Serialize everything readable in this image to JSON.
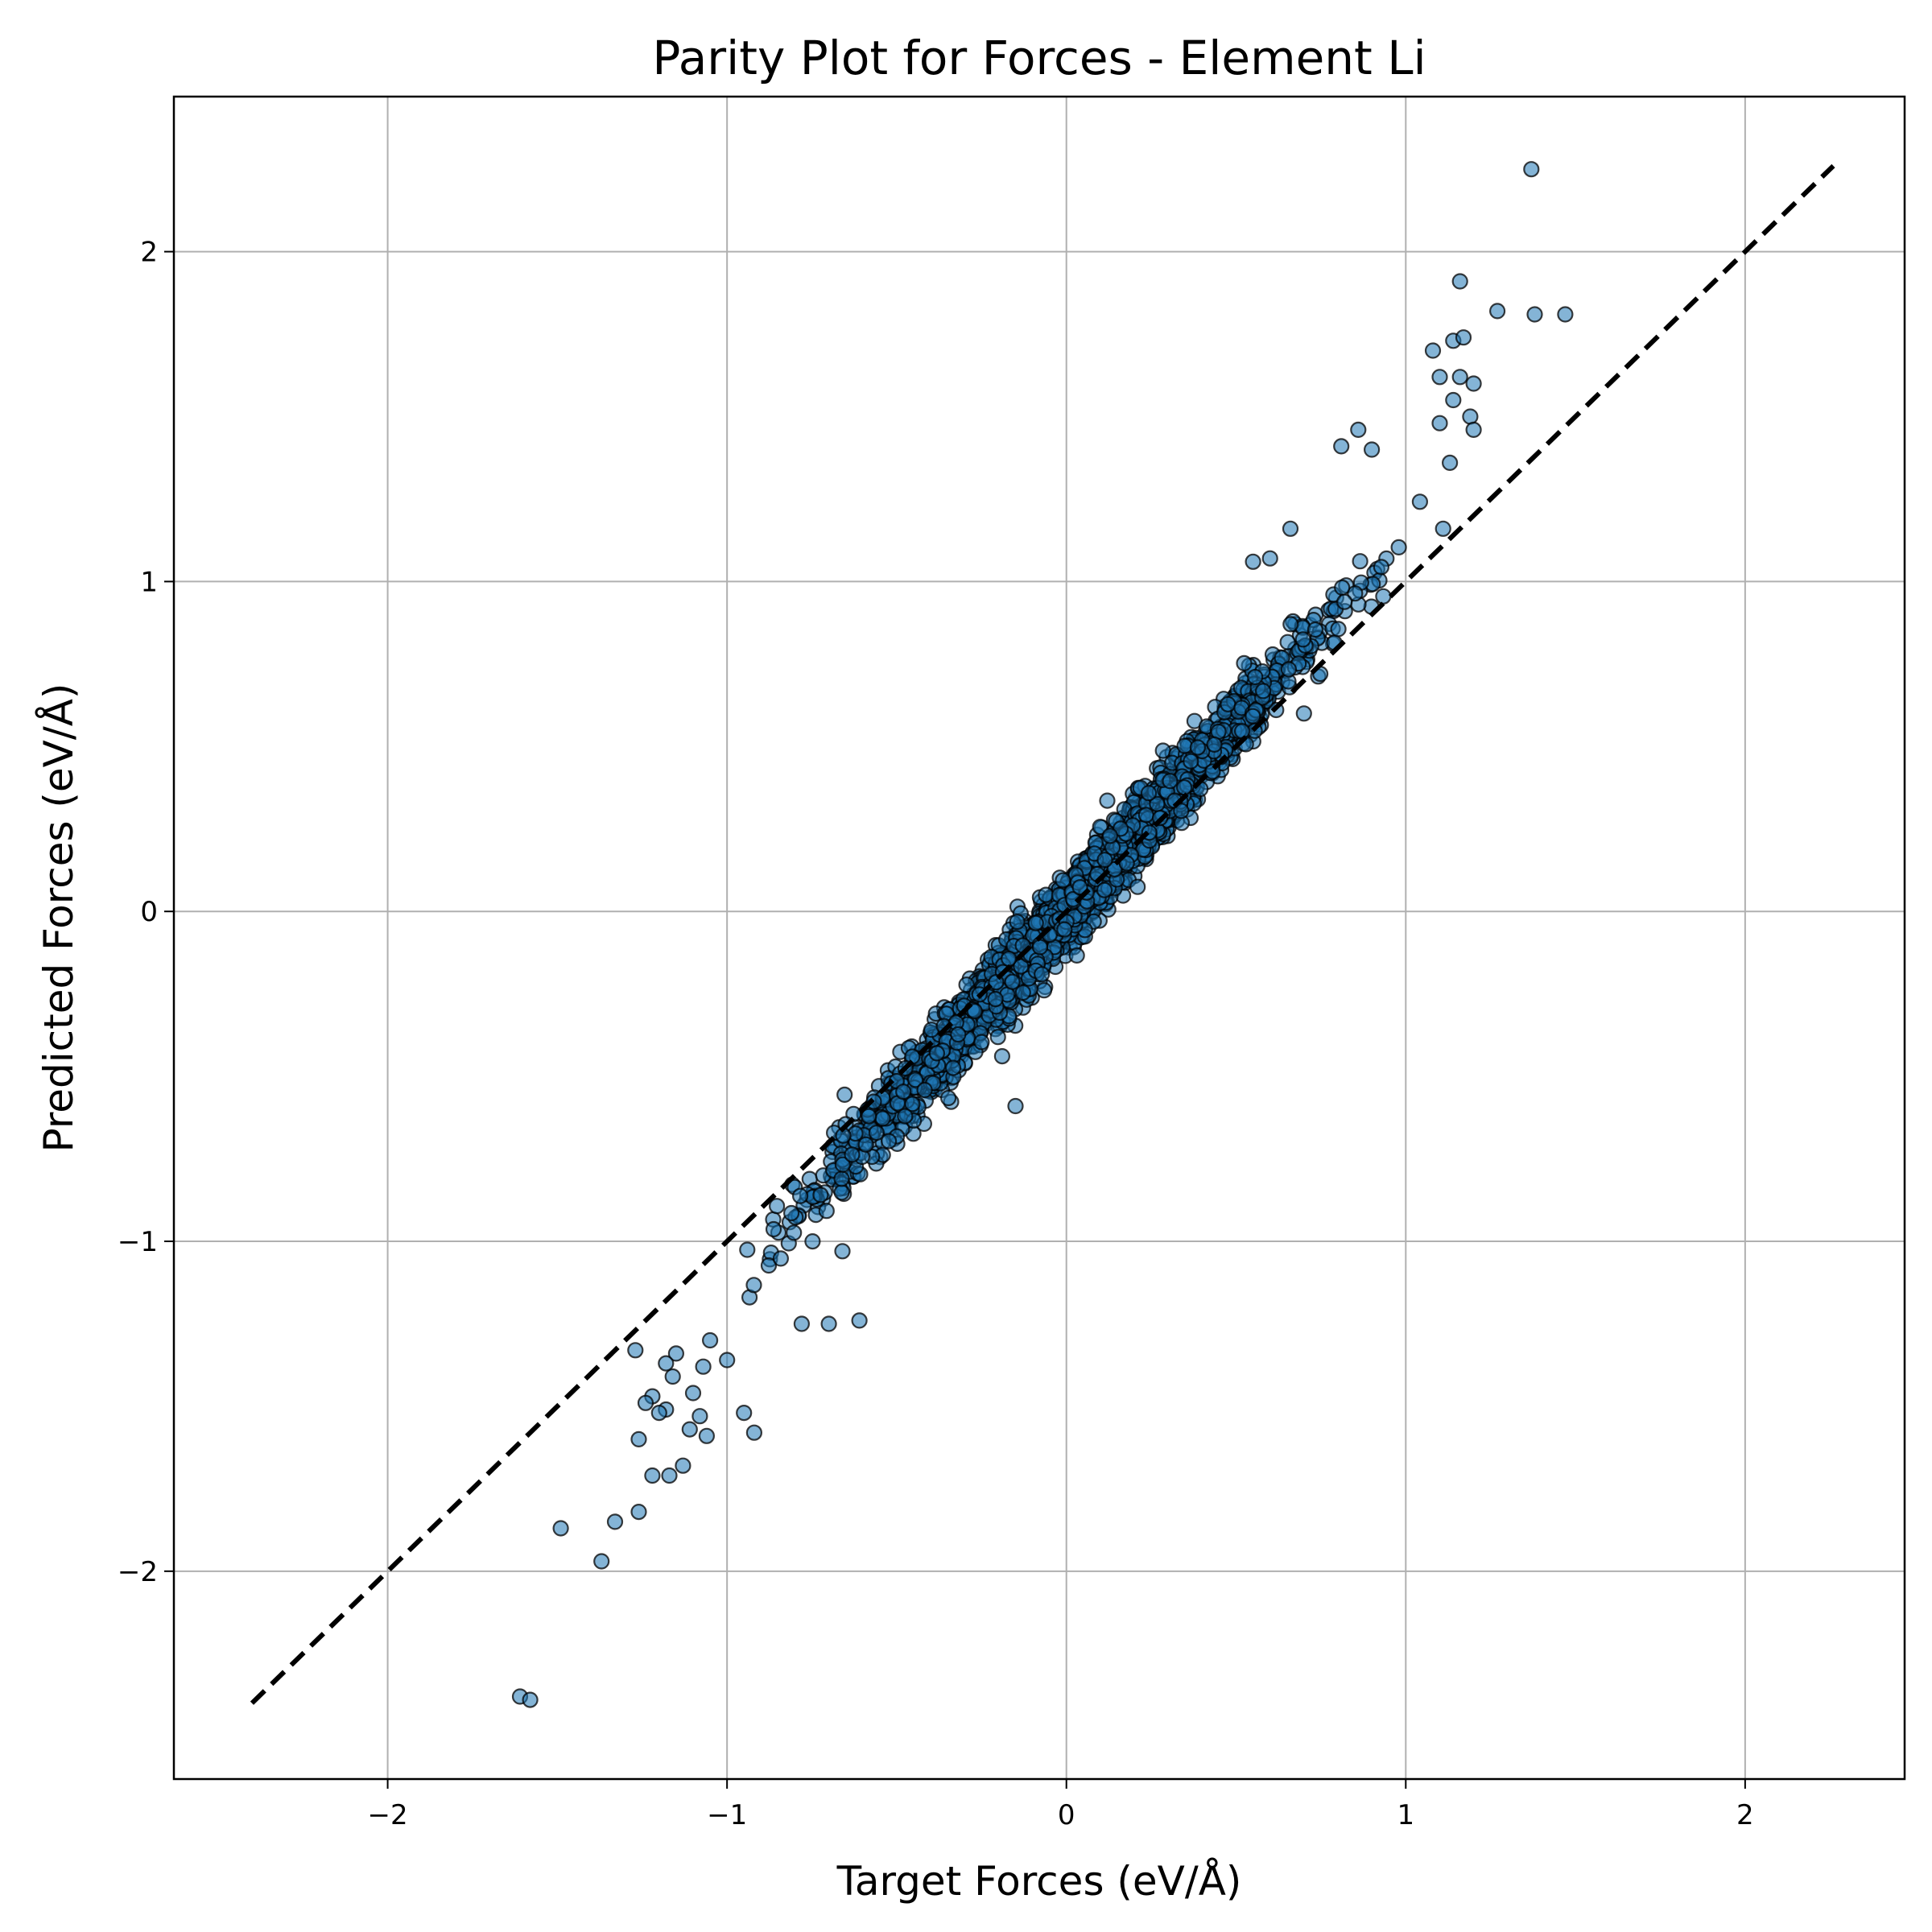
{
  "chart_data": {
    "type": "scatter",
    "title": "Parity Plot for Forces - Element Li",
    "xlabel": "Target Forces (eV/Å)",
    "ylabel": "Predicted Forces (eV/Å)",
    "xlim": [
      -2.63,
      2.47
    ],
    "ylim": [
      -2.63,
      2.47
    ],
    "xticks": [
      -2,
      -1,
      0,
      1,
      2
    ],
    "yticks": [
      -2,
      -1,
      0,
      1,
      2
    ],
    "xtick_labels": [
      "−2",
      "−1",
      "0",
      "1",
      "2"
    ],
    "ytick_labels": [
      "−2",
      "−1",
      "0",
      "1",
      "2"
    ],
    "grid": true,
    "legend": false,
    "reference_line": {
      "from": [
        -2.4,
        -2.4
      ],
      "to": [
        2.26,
        2.26
      ],
      "style": "dashed",
      "color": "#000000"
    },
    "marker_fill": "#1f77b4",
    "marker_fill_opacity": 0.55,
    "marker_edge": "#000000",
    "series": [
      {
        "description_main_cloud": "dense band of points roughly following y = 1.15x",
        "outliers": [
          [
            1.37,
            2.25
          ],
          [
            1.16,
            1.91
          ],
          [
            1.27,
            1.82
          ],
          [
            1.38,
            1.81
          ],
          [
            1.47,
            1.81
          ],
          [
            1.08,
            1.7
          ],
          [
            1.14,
            1.73
          ],
          [
            1.17,
            1.74
          ],
          [
            1.16,
            1.62
          ],
          [
            1.2,
            1.6
          ],
          [
            1.1,
            1.62
          ],
          [
            1.14,
            1.55
          ],
          [
            1.19,
            1.5
          ],
          [
            1.2,
            1.46
          ],
          [
            1.1,
            1.48
          ],
          [
            1.13,
            1.36
          ],
          [
            1.11,
            1.16
          ],
          [
            0.81,
            1.41
          ],
          [
            0.86,
            1.46
          ],
          [
            0.9,
            1.4
          ],
          [
            0.55,
            1.06
          ],
          [
            0.6,
            1.07
          ],
          [
            0.66,
            1.16
          ],
          [
            0.7,
            0.6
          ],
          [
            -0.15,
            -0.59
          ],
          [
            -0.61,
            -1.24
          ],
          [
            -0.66,
            -1.03
          ],
          [
            -0.7,
            -1.25
          ],
          [
            -0.78,
            -1.25
          ],
          [
            -1.0,
            -1.36
          ],
          [
            -1.05,
            -1.3
          ],
          [
            -1.07,
            -1.38
          ],
          [
            -1.1,
            -1.46
          ],
          [
            -1.15,
            -1.34
          ],
          [
            -1.16,
            -1.41
          ],
          [
            -1.18,
            -1.51
          ],
          [
            -1.18,
            -1.37
          ],
          [
            -1.2,
            -1.52
          ],
          [
            -1.22,
            -1.47
          ],
          [
            -1.24,
            -1.49
          ],
          [
            -1.27,
            -1.33
          ],
          [
            -1.06,
            -1.59
          ],
          [
            -1.08,
            -1.53
          ],
          [
            -1.11,
            -1.57
          ],
          [
            -1.26,
            -1.6
          ],
          [
            -0.92,
            -1.58
          ],
          [
            -0.95,
            -1.52
          ],
          [
            -1.13,
            -1.68
          ],
          [
            -1.17,
            -1.71
          ],
          [
            -1.22,
            -1.71
          ],
          [
            -1.33,
            -1.85
          ],
          [
            -1.26,
            -1.82
          ],
          [
            -1.49,
            -1.87
          ],
          [
            -1.37,
            -1.97
          ],
          [
            -1.61,
            -2.38
          ],
          [
            -1.58,
            -2.39
          ]
        ]
      }
    ]
  }
}
